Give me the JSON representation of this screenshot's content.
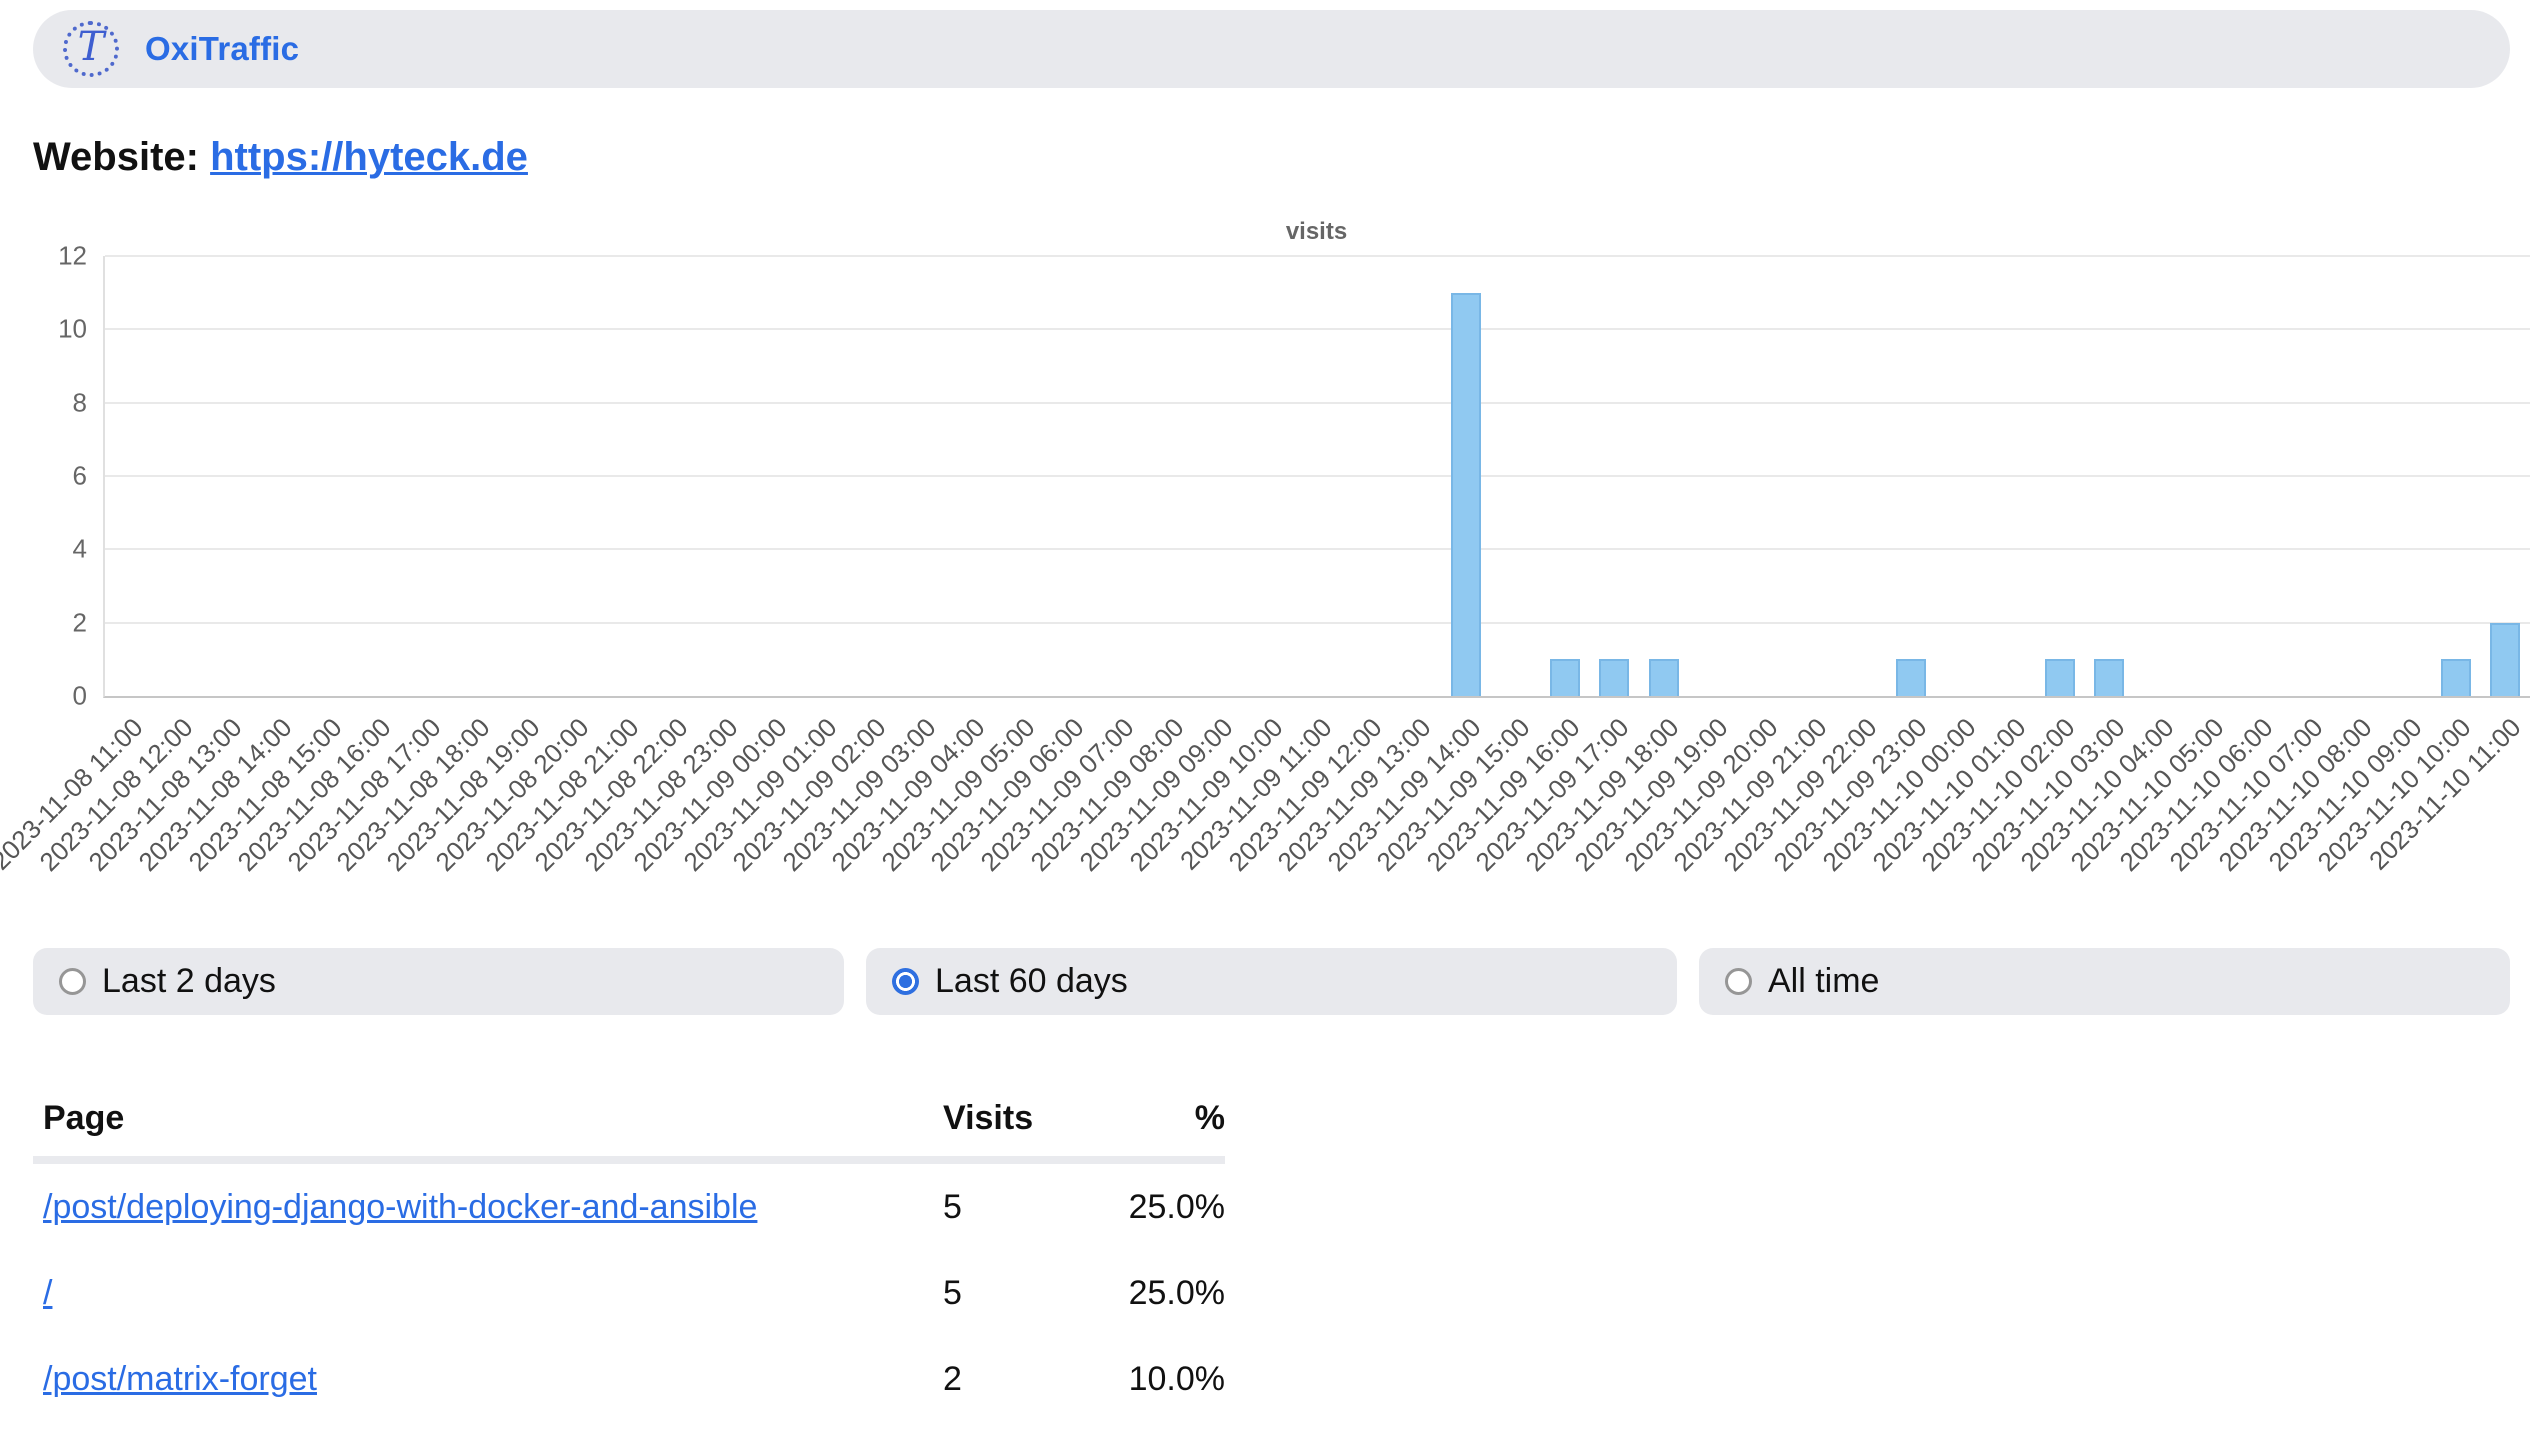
{
  "header": {
    "brand": "OxiTraffic",
    "logo_letter": "T"
  },
  "website": {
    "label": "Website:",
    "url": "https://hyteck.de"
  },
  "chart_data": {
    "type": "bar",
    "title": "visits",
    "xlabel": "",
    "ylabel": "",
    "ylim": [
      0,
      12
    ],
    "yticks": [
      0,
      2,
      4,
      6,
      8,
      10,
      12
    ],
    "grid": true,
    "legend": false,
    "bar_color": "#90c9f1",
    "bar_border_color": "#79b7e6",
    "categories": [
      "2023-11-08 11:00",
      "2023-11-08 12:00",
      "2023-11-08 13:00",
      "2023-11-08 14:00",
      "2023-11-08 15:00",
      "2023-11-08 16:00",
      "2023-11-08 17:00",
      "2023-11-08 18:00",
      "2023-11-08 19:00",
      "2023-11-08 20:00",
      "2023-11-08 21:00",
      "2023-11-08 22:00",
      "2023-11-08 23:00",
      "2023-11-09 00:00",
      "2023-11-09 01:00",
      "2023-11-09 02:00",
      "2023-11-09 03:00",
      "2023-11-09 04:00",
      "2023-11-09 05:00",
      "2023-11-09 06:00",
      "2023-11-09 07:00",
      "2023-11-09 08:00",
      "2023-11-09 09:00",
      "2023-11-09 10:00",
      "2023-11-09 11:00",
      "2023-11-09 12:00",
      "2023-11-09 13:00",
      "2023-11-09 14:00",
      "2023-11-09 15:00",
      "2023-11-09 16:00",
      "2023-11-09 17:00",
      "2023-11-09 18:00",
      "2023-11-09 19:00",
      "2023-11-09 20:00",
      "2023-11-09 21:00",
      "2023-11-09 22:00",
      "2023-11-09 23:00",
      "2023-11-10 00:00",
      "2023-11-10 01:00",
      "2023-11-10 02:00",
      "2023-11-10 03:00",
      "2023-11-10 04:00",
      "2023-11-10 05:00",
      "2023-11-10 06:00",
      "2023-11-10 07:00",
      "2023-11-10 08:00",
      "2023-11-10 09:00",
      "2023-11-10 10:00",
      "2023-11-10 11:00"
    ],
    "values": [
      0,
      0,
      0,
      0,
      0,
      0,
      0,
      0,
      0,
      0,
      0,
      0,
      0,
      0,
      0,
      0,
      0,
      0,
      0,
      0,
      0,
      0,
      0,
      0,
      0,
      0,
      0,
      11,
      0,
      1,
      1,
      1,
      0,
      0,
      0,
      0,
      1,
      0,
      0,
      1,
      1,
      0,
      0,
      0,
      0,
      0,
      0,
      1,
      2
    ]
  },
  "time_ranges": [
    {
      "label": "Last 2 days",
      "selected": false
    },
    {
      "label": "Last 60 days",
      "selected": true
    },
    {
      "label": "All time",
      "selected": false
    }
  ],
  "table": {
    "headers": [
      "Page",
      "Visits",
      "%"
    ],
    "rows": [
      {
        "page": "/post/deploying-django-with-docker-and-ansible",
        "visits": "5",
        "percent": "25.0%"
      },
      {
        "page": "/",
        "visits": "5",
        "percent": "25.0%"
      },
      {
        "page": "/post/matrix-forget",
        "visits": "2",
        "percent": "10.0%"
      }
    ]
  },
  "colors": {
    "accent_blue": "#2a6ce4",
    "logo_blue": "#3e5ed0",
    "pill_grey": "#e8e9ed",
    "bar_fill": "#90c9f1",
    "bar_border": "#79b7e6",
    "grid_grey": "#e9e9e9",
    "axis_text_grey": "#666666"
  }
}
